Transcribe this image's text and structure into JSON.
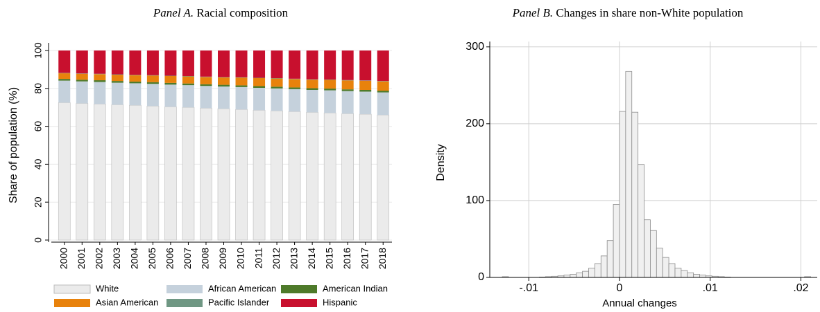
{
  "chart_data": [
    {
      "type": "bar",
      "stacked": true,
      "panel": "Panel A.",
      "title": "Racial composition",
      "ylabel": "Share of population (%)",
      "categories": [
        "2000",
        "2001",
        "2002",
        "2003",
        "2004",
        "2005",
        "2006",
        "2007",
        "2008",
        "2009",
        "2010",
        "2011",
        "2012",
        "2013",
        "2014",
        "2015",
        "2016",
        "2017",
        "2018"
      ],
      "series": [
        {
          "name": "White",
          "color": "#ebebeb",
          "values": [
            72.5,
            72.1,
            71.8,
            71.4,
            71.1,
            70.7,
            70.3,
            70.0,
            69.6,
            69.3,
            68.9,
            68.5,
            68.2,
            67.8,
            67.4,
            67.1,
            66.7,
            66.4,
            66.0
          ]
        },
        {
          "name": "African American",
          "color": "#c5d1dc",
          "values": [
            11.6,
            11.6,
            11.6,
            11.6,
            11.6,
            11.7,
            11.7,
            11.7,
            11.7,
            11.7,
            11.8,
            11.8,
            11.8,
            11.8,
            11.8,
            11.9,
            11.9,
            11.9,
            11.9
          ]
        },
        {
          "name": "American Indian",
          "color": "#4e7a2a",
          "values": [
            0.9,
            0.9,
            0.9,
            0.9,
            0.9,
            0.9,
            0.9,
            0.9,
            0.9,
            0.9,
            0.9,
            0.9,
            0.9,
            0.9,
            0.9,
            0.9,
            0.9,
            0.9,
            0.9
          ]
        },
        {
          "name": "Asian American",
          "color": "#e8820c",
          "values": [
            3.0,
            3.1,
            3.2,
            3.3,
            3.4,
            3.5,
            3.6,
            3.7,
            3.8,
            3.9,
            4.1,
            4.2,
            4.3,
            4.4,
            4.5,
            4.6,
            4.7,
            4.8,
            4.9
          ]
        },
        {
          "name": "Pacific Islander",
          "color": "#6f9783",
          "values": [
            0.2,
            0.2,
            0.2,
            0.2,
            0.2,
            0.2,
            0.2,
            0.2,
            0.2,
            0.2,
            0.2,
            0.2,
            0.2,
            0.2,
            0.2,
            0.2,
            0.2,
            0.2,
            0.2
          ]
        },
        {
          "name": "Hispanic",
          "color": "#c8102e",
          "values": [
            11.8,
            12.1,
            12.3,
            12.6,
            12.8,
            13.0,
            13.3,
            13.5,
            13.8,
            14.0,
            14.1,
            14.4,
            14.6,
            14.9,
            15.2,
            15.3,
            15.6,
            15.8,
            16.1
          ]
        }
      ],
      "ylim": [
        0,
        100
      ],
      "yticks": [
        0,
        20,
        40,
        60,
        80,
        100
      ],
      "grid": true,
      "legend": "bottom"
    },
    {
      "type": "histogram",
      "panel": "Panel B.",
      "title": "Changes in share non-White population",
      "xlabel": "Annual changes",
      "ylabel": "Density",
      "color": "#f0f0f0",
      "bins": [
        -0.01292,
        -0.01224,
        -0.01156,
        -0.01088,
        -0.0102,
        -0.00952,
        -0.00884,
        -0.00816,
        -0.00748,
        -0.0068,
        -0.00612,
        -0.00544,
        -0.00476,
        -0.00408,
        -0.0034,
        -0.00272,
        -0.00204,
        -0.00136,
        -0.00068,
        0,
        0.00068,
        0.00136,
        0.00204,
        0.00272,
        0.0034,
        0.00408,
        0.00476,
        0.00544,
        0.00612,
        0.0068,
        0.00748,
        0.00816,
        0.00884,
        0.00952,
        0.0102,
        0.01088,
        0.01156,
        0.01224,
        0.01292,
        0.0136,
        0.01428,
        0.01496,
        0.01564,
        0.01632,
        0.017,
        0.01768,
        0.01836,
        0.01904,
        0.01972,
        0.0204,
        0.02108
      ],
      "values": [
        1,
        0,
        0,
        0,
        0,
        0,
        0.5,
        1,
        1.5,
        2,
        3,
        4,
        6,
        8,
        12,
        18,
        28,
        48,
        95,
        216,
        268,
        215,
        147,
        75,
        61,
        38,
        26,
        18,
        12,
        9,
        6,
        4,
        3,
        2,
        1.5,
        1,
        0.5,
        0,
        0,
        0,
        0,
        0,
        0,
        0,
        0,
        0,
        0,
        0,
        0,
        1
      ],
      "xlim": [
        -0.0143,
        0.0218
      ],
      "xticks": [
        {
          "value": -0.01,
          "label": "-.01"
        },
        0,
        {
          "value": 0.01,
          "label": ".01"
        },
        {
          "value": 0.02,
          "label": ".02"
        }
      ],
      "ylim": [
        0,
        307
      ],
      "yticks": [
        0,
        100,
        200,
        300
      ],
      "grid": true
    }
  ]
}
